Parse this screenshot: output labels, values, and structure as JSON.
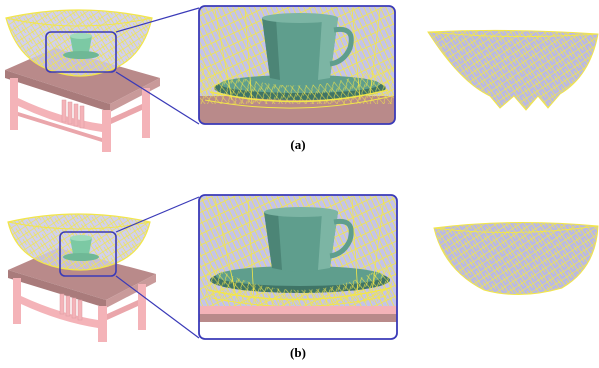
{
  "captions": {
    "a": "(a)",
    "b": "(b)"
  },
  "colors": {
    "wire": "#f2e64a",
    "bowl_fill": "#b9b8e6",
    "cup": "#5f9e8d",
    "cup_dark": "#3f7466",
    "table_top": "#b98a8a",
    "table_leg": "#f4b3b8",
    "table_shadow": "#d99a9f",
    "zoom_frame": "#3a3ab8",
    "zoom_line": "#3a3ab8"
  },
  "icons": [
    "bowl-wireframe",
    "teacup",
    "saucer",
    "table"
  ]
}
